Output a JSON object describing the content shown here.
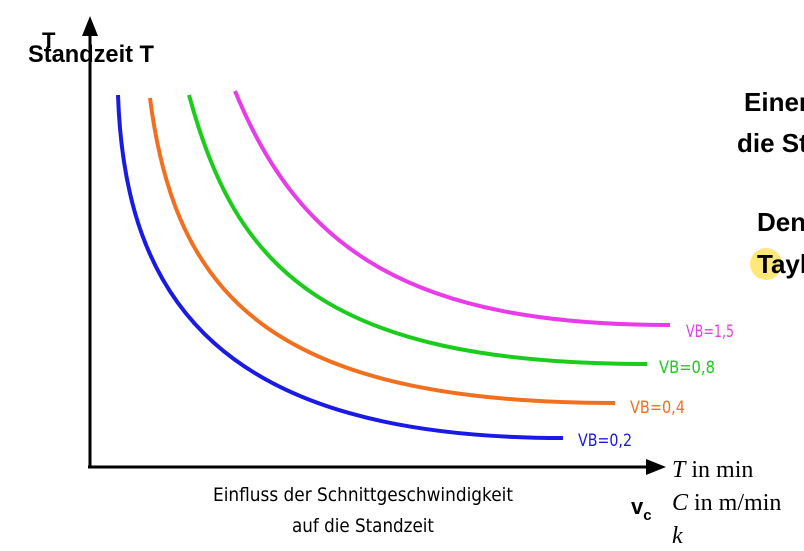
{
  "yaxis": {
    "glyph": "T",
    "label": "Standzeit T"
  },
  "xaxis": {
    "label_sub": "c",
    "label_main": "v"
  },
  "caption": {
    "line1": "Einfluss der Schnittgeschwindigkeit",
    "line2": "auf die Standzeit"
  },
  "legend_formula": {
    "t_sym": "T",
    "t_text": " in min",
    "c_sym": "C",
    "c_text": " in m/min",
    "k_sym": "k"
  },
  "right_text": {
    "line1": "Einer",
    "line2": "die St",
    "line3": "Den",
    "line4": "Tayl",
    "highlight_color": "#ffe87a"
  },
  "chart_data": {
    "type": "line",
    "xlabel": "vc",
    "ylabel": "Standzeit T",
    "series": [
      {
        "name": "VB=0,2",
        "color": "#1a1ae6"
      },
      {
        "name": "VB=0,4",
        "color": "#f07020"
      },
      {
        "name": "VB=0,8",
        "color": "#1ccc1c"
      },
      {
        "name": "VB=1,5",
        "color": "#e83ce8"
      }
    ]
  }
}
